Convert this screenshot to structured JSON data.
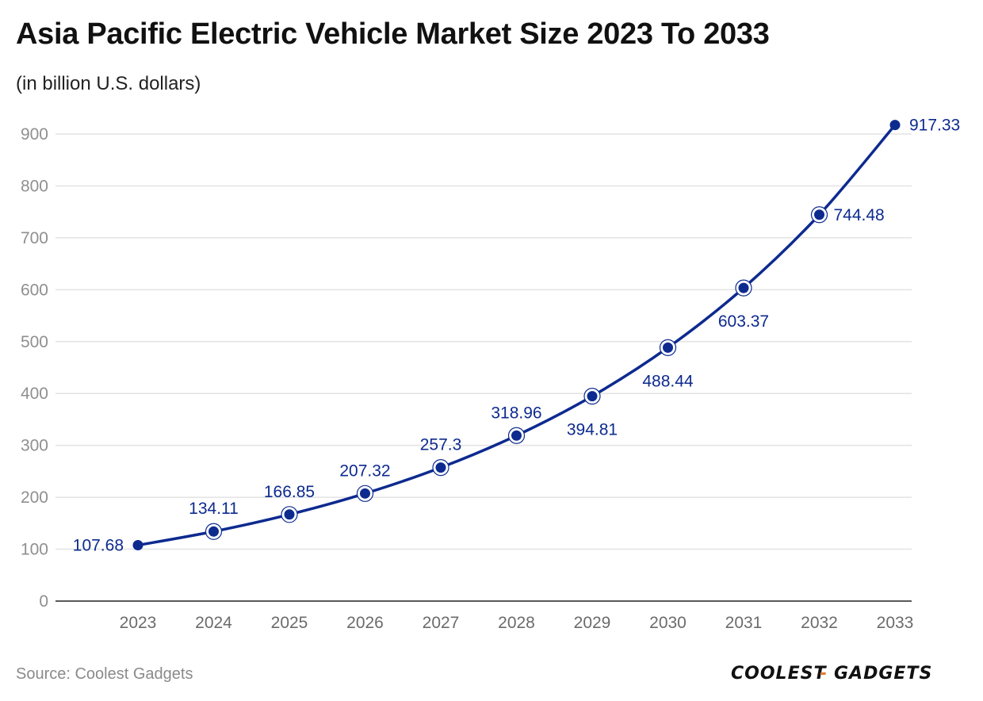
{
  "chart_data": {
    "type": "line",
    "title": "Asia Pacific Electric Vehicle Market Size 2023 To 2033",
    "subtitle": "(in billion U.S. dollars)",
    "categories": [
      "2023",
      "2024",
      "2025",
      "2026",
      "2027",
      "2028",
      "2029",
      "2030",
      "2031",
      "2032",
      "2033"
    ],
    "values": [
      107.68,
      134.11,
      166.85,
      207.32,
      257.3,
      318.96,
      394.81,
      488.44,
      603.37,
      744.48,
      917.33
    ],
    "value_labels": [
      "107.68",
      "134.11",
      "166.85",
      "207.32",
      "257.3",
      "318.96",
      "394.81",
      "488.44",
      "603.37",
      "744.48",
      "917.33"
    ],
    "label_positions": [
      "left",
      "above",
      "above",
      "above",
      "above",
      "above",
      "below",
      "below",
      "below",
      "right",
      "right"
    ],
    "y_ticks": [
      "0",
      "100",
      "200",
      "300",
      "400",
      "500",
      "600",
      "700",
      "800",
      "900"
    ],
    "ylim": [
      0,
      900
    ],
    "xlabel": "",
    "ylabel": "",
    "grid": true,
    "legend": "none",
    "line_color": "#0d2a8f"
  },
  "source": "Source: Coolest Gadgets",
  "logo": {
    "left": "COOLEST",
    "sep": "-",
    "right": "GADGETS",
    "accent": "#e07b39"
  }
}
